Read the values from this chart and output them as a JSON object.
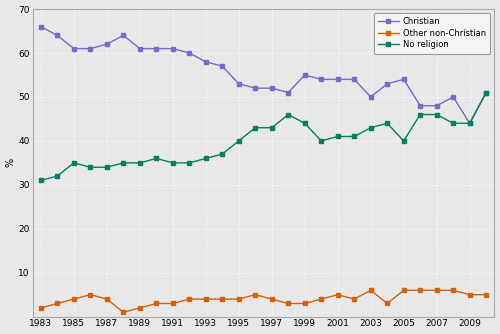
{
  "years": [
    1983,
    1984,
    1985,
    1986,
    1987,
    1988,
    1989,
    1990,
    1991,
    1992,
    1993,
    1994,
    1995,
    1996,
    1997,
    1998,
    1999,
    2000,
    2001,
    2002,
    2003,
    2004,
    2005,
    2006,
    2007,
    2008,
    2009,
    2010
  ],
  "christian": [
    66,
    64,
    61,
    61,
    62,
    64,
    61,
    61,
    61,
    60,
    58,
    57,
    53,
    52,
    52,
    51,
    55,
    54,
    54,
    54,
    50,
    53,
    54,
    48,
    48,
    50,
    44,
    51
  ],
  "other_non_christian": [
    2,
    3,
    4,
    5,
    4,
    1,
    2,
    3,
    3,
    4,
    4,
    4,
    4,
    5,
    4,
    3,
    3,
    4,
    5,
    4,
    6,
    3,
    6,
    6,
    6,
    6,
    5,
    5
  ],
  "no_religion": [
    31,
    32,
    35,
    34,
    34,
    35,
    35,
    36,
    35,
    35,
    36,
    37,
    40,
    43,
    43,
    46,
    44,
    40,
    41,
    41,
    43,
    44,
    40,
    46,
    46,
    44,
    44,
    51
  ],
  "christian_color": "#7b68c8",
  "other_color": "#d4610c",
  "no_religion_color": "#008060",
  "ylabel": "%",
  "ylim": [
    0,
    70
  ],
  "yticks": [
    0,
    10,
    20,
    30,
    40,
    50,
    60,
    70
  ],
  "xtick_years": [
    1983,
    1985,
    1987,
    1989,
    1991,
    1993,
    1995,
    1997,
    1999,
    2001,
    2003,
    2005,
    2007,
    2009
  ],
  "legend_labels": [
    "Christian",
    "Other non-Christian",
    "No religion"
  ],
  "bg_color": "#e8e8e8",
  "grid_color": "#ffffff",
  "figwidth": 5.0,
  "figheight": 3.34,
  "dpi": 100
}
